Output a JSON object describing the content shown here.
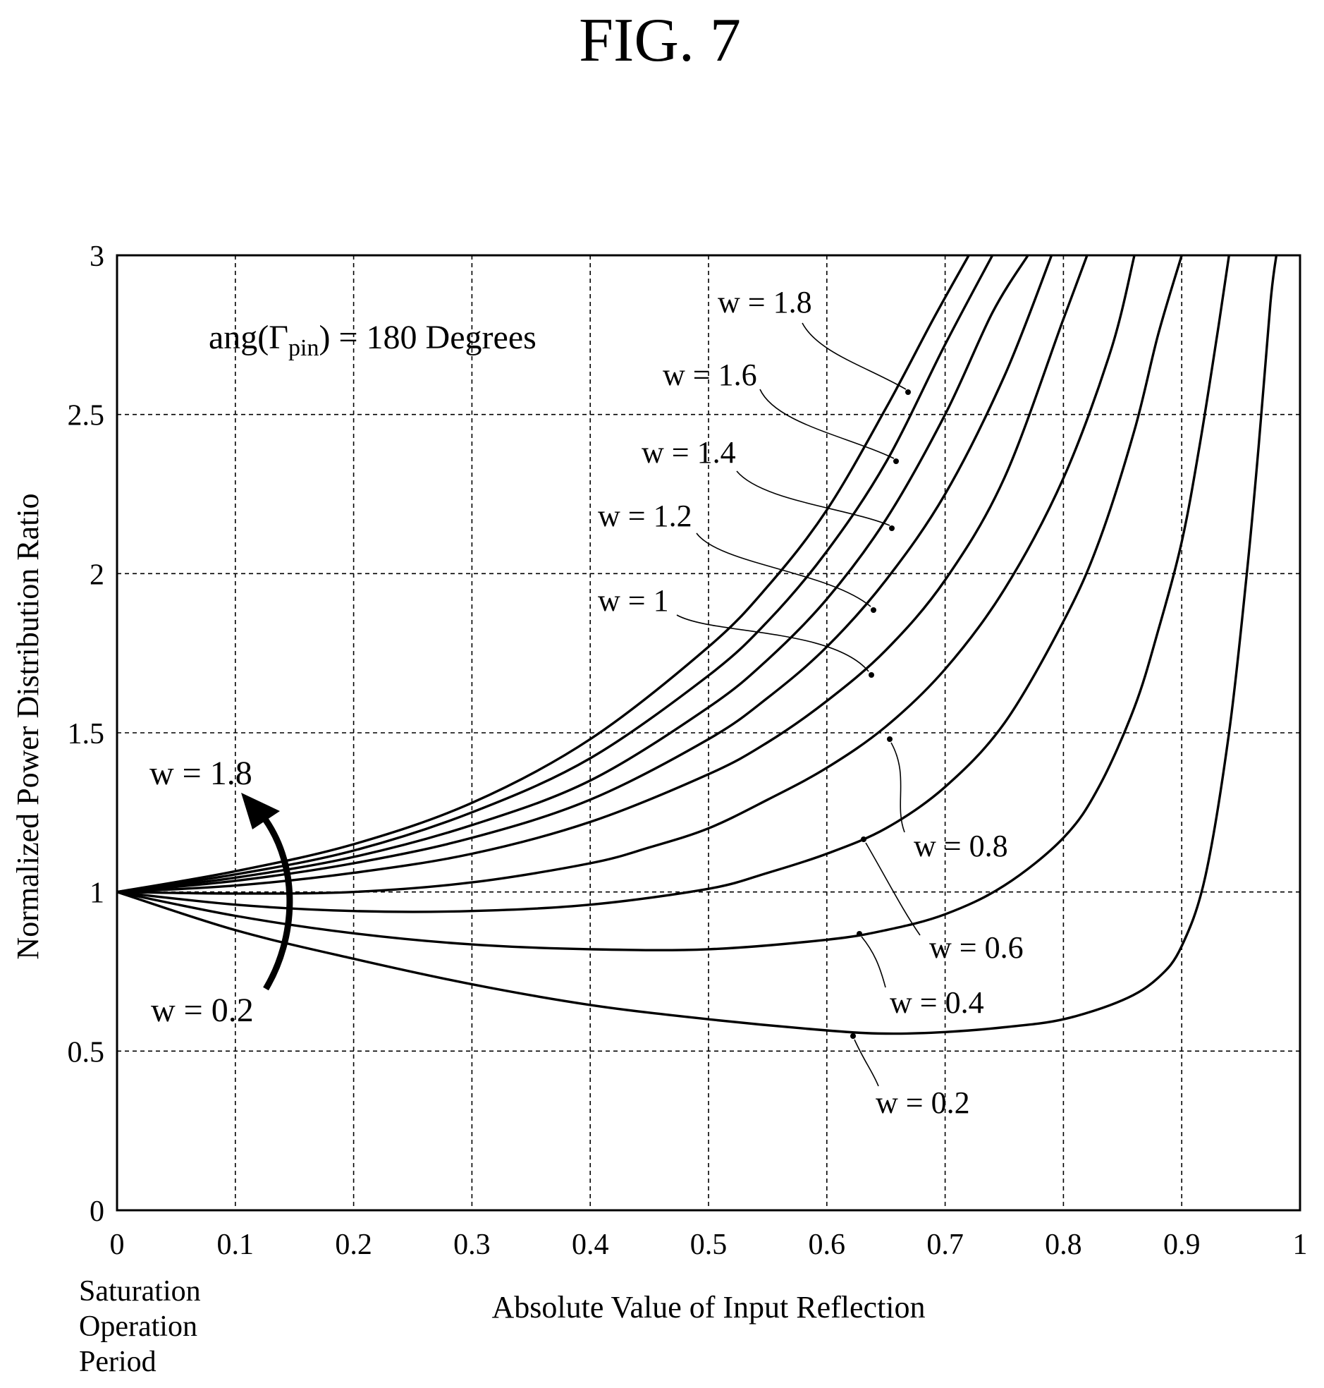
{
  "figure_title": "FIG. 7",
  "chart_data": {
    "type": "line",
    "title": "",
    "annotation": {
      "prefix": "ang(",
      "symbol": "Γ",
      "subscript": "pin",
      "suffix": ") = 180 Degrees"
    },
    "xlabel": "Absolute Value of Input Reflection",
    "ylabel": "Normalized Power Distribution Ratio",
    "x_origin_note": [
      "Saturation",
      "Operation",
      "Period"
    ],
    "xlim": [
      0,
      1
    ],
    "ylim": [
      0,
      3
    ],
    "xticks": [
      0,
      0.1,
      0.2,
      0.3,
      0.4,
      0.5,
      0.6,
      0.7,
      0.8,
      0.9,
      1
    ],
    "xtick_labels": [
      "0",
      "0.1",
      "0.2",
      "0.3",
      "0.4",
      "0.5",
      "0.6",
      "0.7",
      "0.8",
      "0.9",
      "1"
    ],
    "yticks": [
      0,
      0.5,
      1,
      1.5,
      2,
      2.5,
      3
    ],
    "ytick_labels": [
      "0",
      "0.5",
      "1",
      "1.5",
      "2",
      "2.5",
      "3"
    ],
    "grid": true,
    "legend": "none",
    "arrow_annotation": {
      "from_label": "w = 0.2",
      "to_label": "w = 1.8"
    },
    "series": [
      {
        "name": "w = 0.2",
        "x": [
          0,
          0.1,
          0.2,
          0.3,
          0.4,
          0.5,
          0.6,
          0.65,
          0.7,
          0.75,
          0.8,
          0.85,
          0.88,
          0.9,
          0.92,
          0.94,
          0.955,
          0.965,
          0.975,
          0.98
        ],
        "y": [
          1,
          0.88,
          0.79,
          0.71,
          0.645,
          0.6,
          0.565,
          0.555,
          0.56,
          0.575,
          0.6,
          0.66,
          0.73,
          0.83,
          1.05,
          1.5,
          2.0,
          2.4,
          2.85,
          3.0
        ]
      },
      {
        "name": "w = 0.4",
        "x": [
          0,
          0.1,
          0.2,
          0.3,
          0.4,
          0.5,
          0.6,
          0.65,
          0.7,
          0.75,
          0.8,
          0.83,
          0.86,
          0.88,
          0.9,
          0.915,
          0.93,
          0.94
        ],
        "y": [
          1,
          0.925,
          0.87,
          0.835,
          0.82,
          0.82,
          0.85,
          0.88,
          0.93,
          1.02,
          1.17,
          1.33,
          1.58,
          1.82,
          2.1,
          2.4,
          2.75,
          3.0
        ]
      },
      {
        "name": "w = 0.6",
        "x": [
          0,
          0.1,
          0.2,
          0.3,
          0.4,
          0.5,
          0.55,
          0.6,
          0.65,
          0.7,
          0.75,
          0.8,
          0.83,
          0.86,
          0.88,
          0.9
        ],
        "y": [
          1,
          0.96,
          0.94,
          0.94,
          0.96,
          1.01,
          1.06,
          1.12,
          1.2,
          1.33,
          1.53,
          1.85,
          2.1,
          2.45,
          2.75,
          3.0
        ]
      },
      {
        "name": "w = 0.8",
        "x": [
          0,
          0.1,
          0.2,
          0.3,
          0.4,
          0.45,
          0.5,
          0.55,
          0.6,
          0.65,
          0.7,
          0.75,
          0.8,
          0.84,
          0.86
        ],
        "y": [
          1,
          0.995,
          1.0,
          1.03,
          1.09,
          1.14,
          1.2,
          1.29,
          1.39,
          1.52,
          1.7,
          1.95,
          2.3,
          2.7,
          3.0
        ]
      },
      {
        "name": "w = 1",
        "x": [
          0,
          0.1,
          0.2,
          0.3,
          0.4,
          0.5,
          0.55,
          0.6,
          0.65,
          0.7,
          0.75,
          0.8,
          0.82
        ],
        "y": [
          1,
          1.02,
          1.06,
          1.12,
          1.22,
          1.37,
          1.47,
          1.6,
          1.76,
          1.98,
          2.3,
          2.8,
          3.0
        ]
      },
      {
        "name": "w = 1.2",
        "x": [
          0,
          0.1,
          0.2,
          0.3,
          0.4,
          0.5,
          0.55,
          0.6,
          0.65,
          0.7,
          0.75,
          0.79
        ],
        "y": [
          1,
          1.035,
          1.09,
          1.17,
          1.29,
          1.48,
          1.61,
          1.77,
          1.98,
          2.25,
          2.62,
          3.0
        ]
      },
      {
        "name": "w = 1.4",
        "x": [
          0,
          0.1,
          0.2,
          0.3,
          0.4,
          0.5,
          0.55,
          0.6,
          0.65,
          0.7,
          0.74,
          0.77
        ],
        "y": [
          1,
          1.045,
          1.11,
          1.21,
          1.35,
          1.58,
          1.73,
          1.92,
          2.17,
          2.5,
          2.82,
          3.0
        ]
      },
      {
        "name": "w = 1.6",
        "x": [
          0,
          0.1,
          0.2,
          0.3,
          0.4,
          0.5,
          0.55,
          0.6,
          0.65,
          0.7,
          0.74
        ],
        "y": [
          1,
          1.055,
          1.13,
          1.25,
          1.42,
          1.68,
          1.85,
          2.07,
          2.35,
          2.72,
          3.0
        ]
      },
      {
        "name": "w = 1.8",
        "x": [
          0,
          0.1,
          0.2,
          0.3,
          0.4,
          0.5,
          0.55,
          0.6,
          0.65,
          0.69,
          0.72
        ],
        "y": [
          1,
          1.065,
          1.15,
          1.28,
          1.48,
          1.77,
          1.96,
          2.2,
          2.52,
          2.8,
          3.0
        ]
      }
    ],
    "curve_labels": [
      "w = 1.8",
      "w = 1.6",
      "w = 1.4",
      "w = 1.2",
      "w = 1",
      "w = 0.8",
      "w = 0.6",
      "w = 0.4",
      "w = 0.2"
    ]
  }
}
